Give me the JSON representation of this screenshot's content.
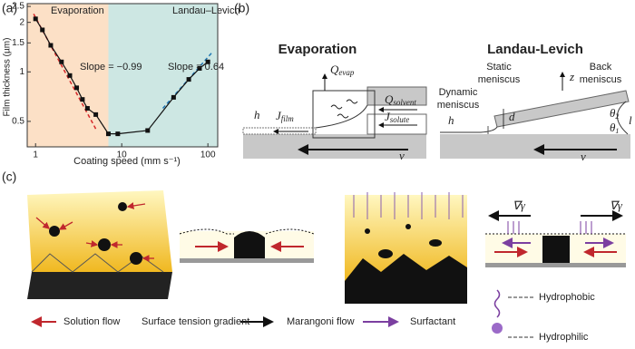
{
  "chart_data": {
    "type": "line",
    "x_label": "Coating speed (mm s⁻¹)",
    "y_label": "Film thickness (µm)",
    "x_log": true,
    "y_log": true,
    "xlim": [
      0.8,
      130
    ],
    "ylim": [
      0.35,
      2.6
    ],
    "xticks": [
      1,
      10,
      100
    ],
    "yticks": [
      0.5,
      1,
      1.5,
      2,
      2.5
    ],
    "regions": [
      {
        "label": "Evaporation",
        "xlim": [
          0.8,
          7
        ],
        "color": "#fce0c6"
      },
      {
        "label": "Landau–Levich",
        "xlim": [
          7,
          130
        ],
        "color": "#cde7e3"
      }
    ],
    "series": [
      {
        "color": "#111111",
        "x": [
          1,
          1.2,
          1.5,
          2,
          2.5,
          3,
          3.5,
          4,
          5,
          7,
          9,
          20,
          40,
          60,
          80,
          100
        ],
        "values": [
          2.1,
          1.8,
          1.45,
          1.15,
          0.95,
          0.8,
          0.68,
          0.6,
          0.55,
          0.42,
          0.42,
          0.44,
          0.7,
          0.9,
          1.05,
          1.15
        ]
      }
    ],
    "fits": [
      {
        "label": "Slope = −0.99",
        "color": "#d62728",
        "x": [
          0.95,
          5
        ],
        "values": [
          2.25,
          0.45
        ]
      },
      {
        "label": "Slope = 0.64",
        "color": "#1f77b4",
        "x": [
          30,
          110
        ],
        "values": [
          0.6,
          1.3
        ]
      }
    ]
  },
  "panels": {
    "a": "(a)",
    "b": "(b)",
    "c": "(c)"
  },
  "evaporation": {
    "title": "Evaporation",
    "q_evap": [
      "Q",
      "evap"
    ],
    "q_solvent": [
      "Q",
      "solvent"
    ],
    "j_solute": [
      "J",
      "solute"
    ],
    "j_film": [
      "J",
      "film"
    ],
    "h": "h",
    "v": "v"
  },
  "landau_levich": {
    "title": "Landau-Levich",
    "static": [
      "Static",
      "meniscus"
    ],
    "back": [
      "Back",
      "meniscus"
    ],
    "dynamic": [
      "Dynamic",
      "meniscus"
    ],
    "z": "z",
    "h": "h",
    "d": "d",
    "theta2": [
      "θ",
      "2"
    ],
    "theta1": [
      "θ",
      "1"
    ],
    "l": "l",
    "v": "v"
  },
  "gradient_symbol": [
    "∇γ",
    "∇γ"
  ],
  "legend": {
    "solution_flow": "Solution flow",
    "surface_tension_gradient": "Surface tension gradient",
    "marangoni_flow": "Marangoni flow",
    "surfactant": "Surfactant",
    "hydrophobic": "Hydrophobic",
    "hydrophilic": "Hydrophilic"
  }
}
